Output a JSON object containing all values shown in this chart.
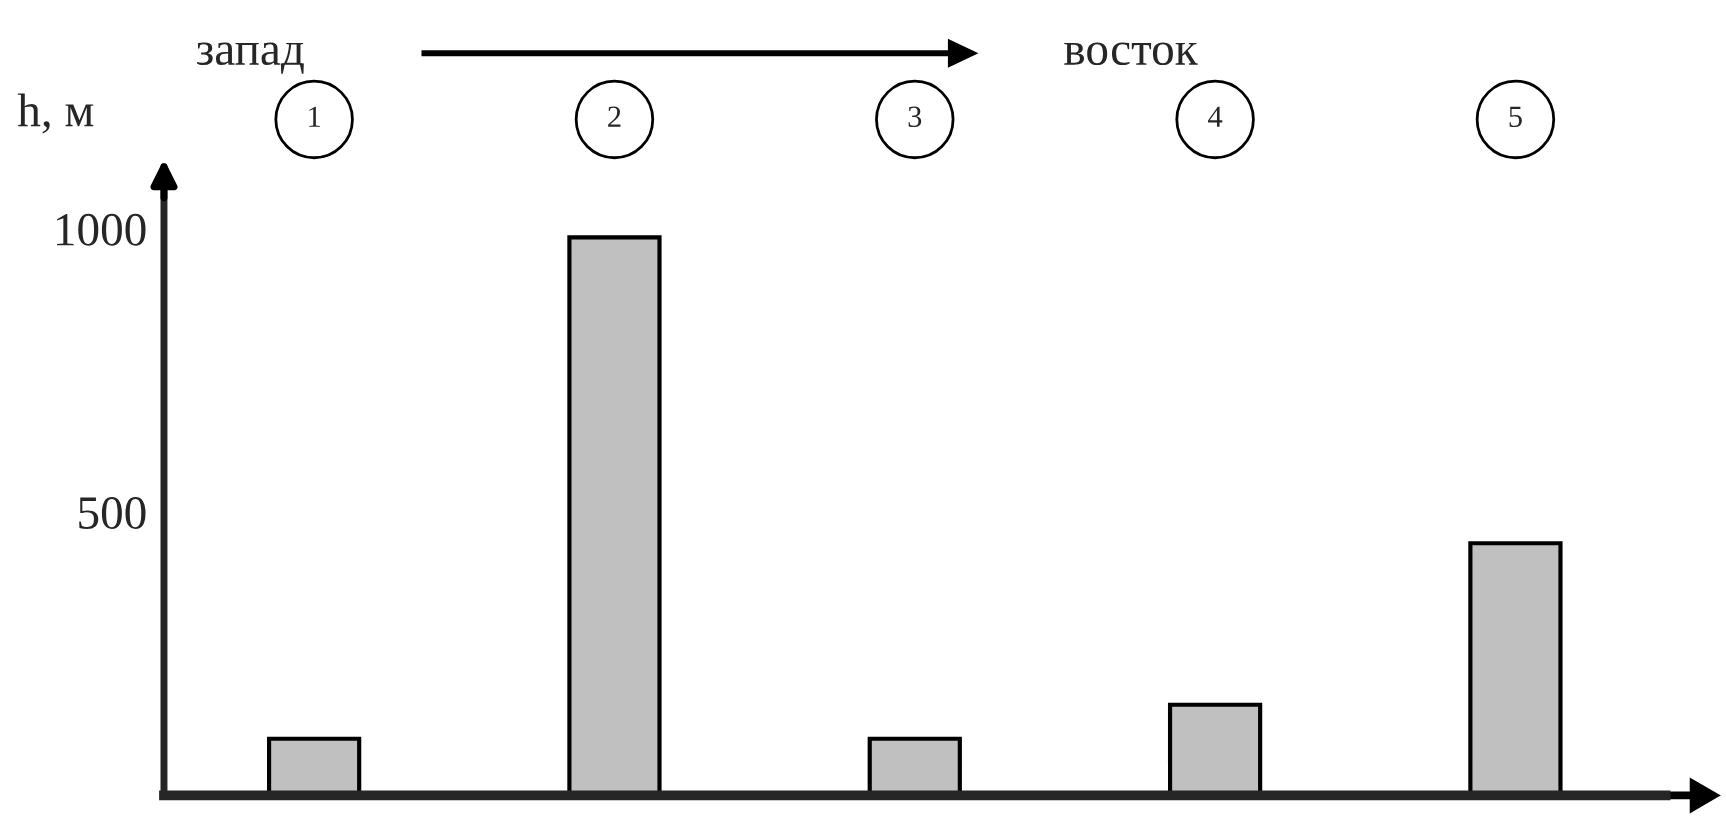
{
  "chart_data": {
    "type": "bar",
    "ylabel": "h, м",
    "annotations": [
      "запад",
      "восток"
    ],
    "categories": [
      "1",
      "2",
      "3",
      "4",
      "5"
    ],
    "values": [
      100,
      985,
      100,
      160,
      445
    ],
    "color": "#c0c0c0",
    "ylim": [
      0,
      1100
    ],
    "yticks": [
      500,
      1000
    ],
    "grid": false,
    "legend": false
  }
}
